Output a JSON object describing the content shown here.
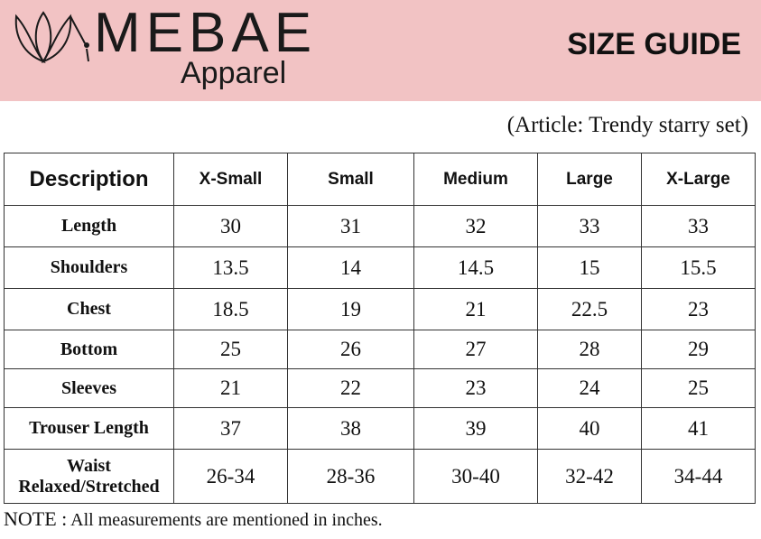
{
  "brand": {
    "name": "MEBAE",
    "sub": "Apparel",
    "logo_icon": "tulip-outline-icon"
  },
  "header": {
    "title": "SIZE GUIDE"
  },
  "article": "(Article: Trendy starry set)",
  "table": {
    "description_label": "Description",
    "sizes": [
      "X-Small",
      "Small",
      "Medium",
      "Large",
      "X-Large"
    ],
    "rows": [
      {
        "label": "Length",
        "values": [
          "30",
          "31",
          "32",
          "33",
          "33"
        ]
      },
      {
        "label": "Shoulders",
        "values": [
          "13.5",
          "14",
          "14.5",
          "15",
          "15.5"
        ]
      },
      {
        "label": "Chest",
        "values": [
          "18.5",
          "19",
          "21",
          "22.5",
          "23"
        ]
      },
      {
        "label": "Bottom",
        "values": [
          "25",
          "26",
          "27",
          "28",
          "29"
        ]
      },
      {
        "label": "Sleeves",
        "values": [
          "21",
          "22",
          "23",
          "24",
          "25"
        ]
      },
      {
        "label": "Trouser Length",
        "values": [
          "37",
          "38",
          "39",
          "40",
          "41"
        ]
      },
      {
        "label": "Waist",
        "label2": "Relaxed/Stretched",
        "values": [
          "26-34",
          "28-36",
          "30-40",
          "32-42",
          "34-44"
        ]
      }
    ]
  },
  "note": {
    "label": "NOTE :",
    "text": "All measurements are mentioned in inches."
  },
  "colors": {
    "banner": "#f2c3c4",
    "text": "#111111",
    "border": "#333333"
  }
}
